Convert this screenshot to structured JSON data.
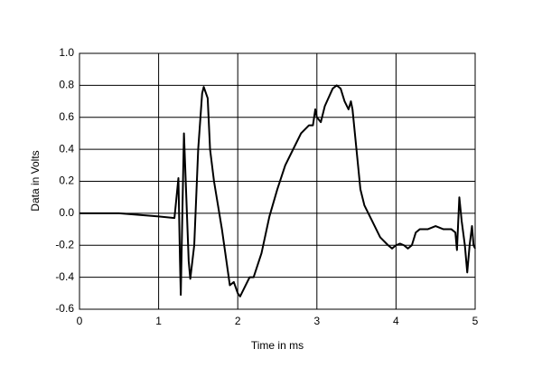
{
  "chart_data": {
    "type": "line",
    "x_label": "Time in ms",
    "y_label": "Data in Volts",
    "x": [
      0,
      0.5,
      1.0,
      1.2,
      1.25,
      1.27,
      1.28,
      1.3,
      1.32,
      1.35,
      1.38,
      1.4,
      1.45,
      1.5,
      1.55,
      1.57,
      1.62,
      1.65,
      1.7,
      1.8,
      1.9,
      1.95,
      2.0,
      2.03,
      2.1,
      2.15,
      2.2,
      2.3,
      2.4,
      2.5,
      2.6,
      2.7,
      2.8,
      2.9,
      2.95,
      2.98,
      3.0,
      3.05,
      3.1,
      3.2,
      3.25,
      3.3,
      3.35,
      3.4,
      3.43,
      3.45,
      3.5,
      3.55,
      3.6,
      3.7,
      3.8,
      3.9,
      3.95,
      4.0,
      4.05,
      4.1,
      4.15,
      4.2,
      4.25,
      4.3,
      4.4,
      4.5,
      4.6,
      4.7,
      4.75,
      4.77,
      4.8,
      4.83,
      4.87,
      4.9,
      4.93,
      4.96,
      4.98,
      5.0
    ],
    "values": [
      0.0,
      0.0,
      -0.02,
      -0.03,
      0.22,
      -0.3,
      -0.51,
      0.0,
      0.5,
      0.1,
      -0.3,
      -0.41,
      -0.2,
      0.4,
      0.75,
      0.79,
      0.72,
      0.4,
      0.2,
      -0.1,
      -0.45,
      -0.43,
      -0.5,
      -0.52,
      -0.45,
      -0.4,
      -0.4,
      -0.25,
      -0.02,
      0.15,
      0.3,
      0.4,
      0.5,
      0.55,
      0.55,
      0.65,
      0.6,
      0.57,
      0.67,
      0.78,
      0.8,
      0.78,
      0.7,
      0.65,
      0.7,
      0.65,
      0.4,
      0.15,
      0.05,
      -0.05,
      -0.15,
      -0.2,
      -0.22,
      -0.2,
      -0.19,
      -0.2,
      -0.22,
      -0.2,
      -0.12,
      -0.1,
      -0.1,
      -0.08,
      -0.1,
      -0.1,
      -0.12,
      -0.23,
      0.1,
      -0.05,
      -0.2,
      -0.37,
      -0.2,
      -0.08,
      -0.2,
      -0.22
    ],
    "color": "#000000",
    "xlim": [
      0,
      5
    ],
    "xticks": [
      0,
      1,
      2,
      3,
      4,
      5
    ],
    "ylim": [
      -0.6,
      1.0
    ],
    "yticks": [
      {
        "value": 1.0,
        "label": "1.0"
      },
      0.8,
      0.6,
      0.4,
      0.2,
      {
        "value": 0.0,
        "label": "0.0"
      },
      -0.2,
      -0.4,
      -0.6
    ],
    "grid": true
  }
}
